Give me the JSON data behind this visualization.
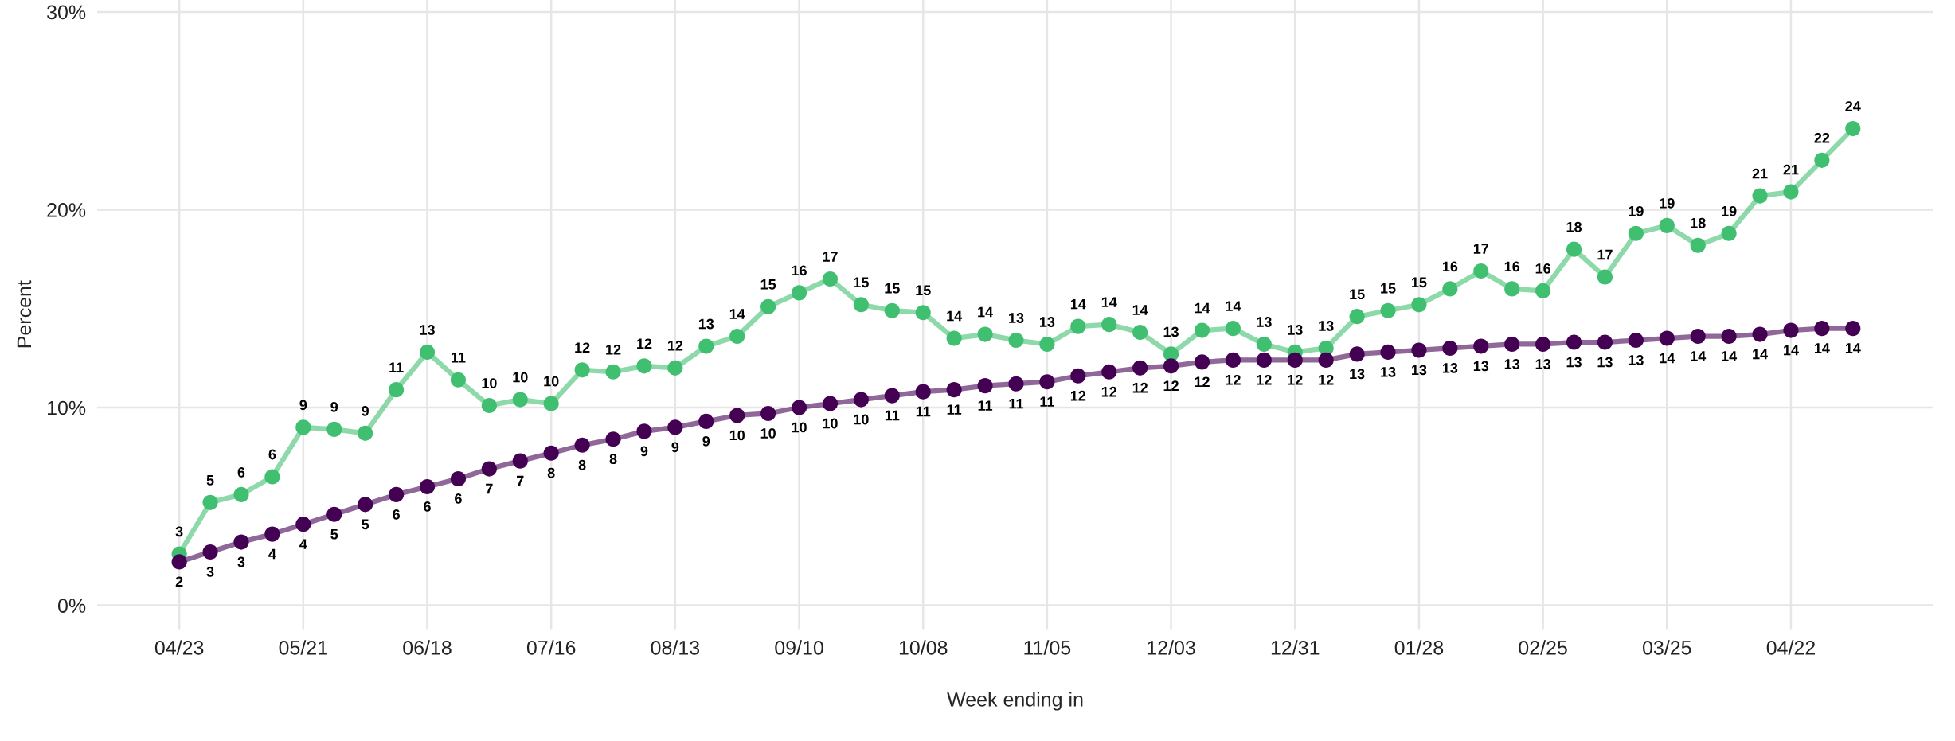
{
  "chart_data": {
    "type": "line",
    "xlabel": "Week ending in",
    "ylabel": "Percent",
    "categories": [
      "04/23",
      null,
      null,
      null,
      "05/21",
      null,
      null,
      null,
      "06/18",
      null,
      null,
      null,
      "07/16",
      null,
      null,
      null,
      "08/13",
      null,
      null,
      null,
      "09/10",
      null,
      null,
      null,
      "10/08",
      null,
      null,
      null,
      "11/05",
      null,
      null,
      null,
      "12/03",
      null,
      null,
      null,
      "12/31",
      null,
      null,
      null,
      "01/28",
      null,
      null,
      null,
      "02/25",
      null,
      null,
      null,
      "03/25",
      null,
      null,
      null,
      "04/22",
      null,
      null
    ],
    "series": [
      {
        "color": "#41bf71",
        "values": [
          2.6,
          5.2,
          5.6,
          6.5,
          9.0,
          8.9,
          8.7,
          10.9,
          12.8,
          11.4,
          10.1,
          10.4,
          10.2,
          11.9,
          11.8,
          12.1,
          12.0,
          13.1,
          13.6,
          15.1,
          15.8,
          16.5,
          15.2,
          14.9,
          14.8,
          13.5,
          13.7,
          13.4,
          13.2,
          14.1,
          14.2,
          13.8,
          12.7,
          13.9,
          14.0,
          13.2,
          12.8,
          13.0,
          14.6,
          14.9,
          15.2,
          16.0,
          16.9,
          16.0,
          15.9,
          18.0,
          16.6,
          18.8,
          19.2,
          18.2,
          18.8,
          20.7,
          20.9,
          22.5,
          24.1
        ],
        "value_labels": [
          "3",
          "5",
          "6",
          "6",
          "9",
          "9",
          "9",
          "11",
          "13",
          "11",
          "10",
          "10",
          "10",
          "12",
          "12",
          "12",
          "12",
          "13",
          "14",
          "15",
          "16",
          "17",
          "15",
          "15",
          "15",
          "14",
          "14",
          "13",
          "13",
          "14",
          "14",
          "14",
          "13",
          "14",
          "14",
          "13",
          "13",
          "13",
          "15",
          "15",
          "15",
          "16",
          "17",
          "16",
          "16",
          "18",
          "17",
          "19",
          "19",
          "18",
          "19",
          "21",
          "21",
          "22",
          "24"
        ]
      },
      {
        "color": "#440154",
        "values": [
          2.2,
          2.7,
          3.2,
          3.6,
          4.1,
          4.6,
          5.1,
          5.6,
          6.0,
          6.4,
          6.9,
          7.3,
          7.7,
          8.1,
          8.4,
          8.8,
          9.0,
          9.3,
          9.6,
          9.7,
          10.0,
          10.2,
          10.4,
          10.6,
          10.8,
          10.9,
          11.1,
          11.2,
          11.3,
          11.6,
          11.8,
          12.0,
          12.1,
          12.3,
          12.4,
          12.4,
          12.4,
          12.4,
          12.7,
          12.8,
          12.9,
          13.0,
          13.1,
          13.2,
          13.2,
          13.3,
          13.3,
          13.4,
          13.5,
          13.6,
          13.6,
          13.7,
          13.9,
          14.0,
          14.0
        ],
        "value_labels": [
          "2",
          "3",
          "3",
          "4",
          "4",
          "5",
          "5",
          "6",
          "6",
          "6",
          "7",
          "7",
          "8",
          "8",
          "8",
          "9",
          "9",
          "9",
          "10",
          "10",
          "10",
          "10",
          "10",
          "11",
          "11",
          "11",
          "11",
          "11",
          "11",
          "12",
          "12",
          "12",
          "12",
          "12",
          "12",
          "12",
          "12",
          "12",
          "13",
          "13",
          "13",
          "13",
          "13",
          "13",
          "13",
          "13",
          "13",
          "13",
          "14",
          "14",
          "14",
          "14",
          "14",
          "14",
          "14"
        ]
      }
    ],
    "ylim": [
      -1.2,
      30.6
    ],
    "yticks": [
      {
        "value": 0,
        "label": "0%"
      },
      {
        "value": 10,
        "label": "10%"
      },
      {
        "value": 20,
        "label": "20%"
      },
      {
        "value": 30,
        "label": "30%"
      }
    ],
    "grid": true,
    "marker": "circle",
    "line_style": "solid",
    "legend": false
  }
}
